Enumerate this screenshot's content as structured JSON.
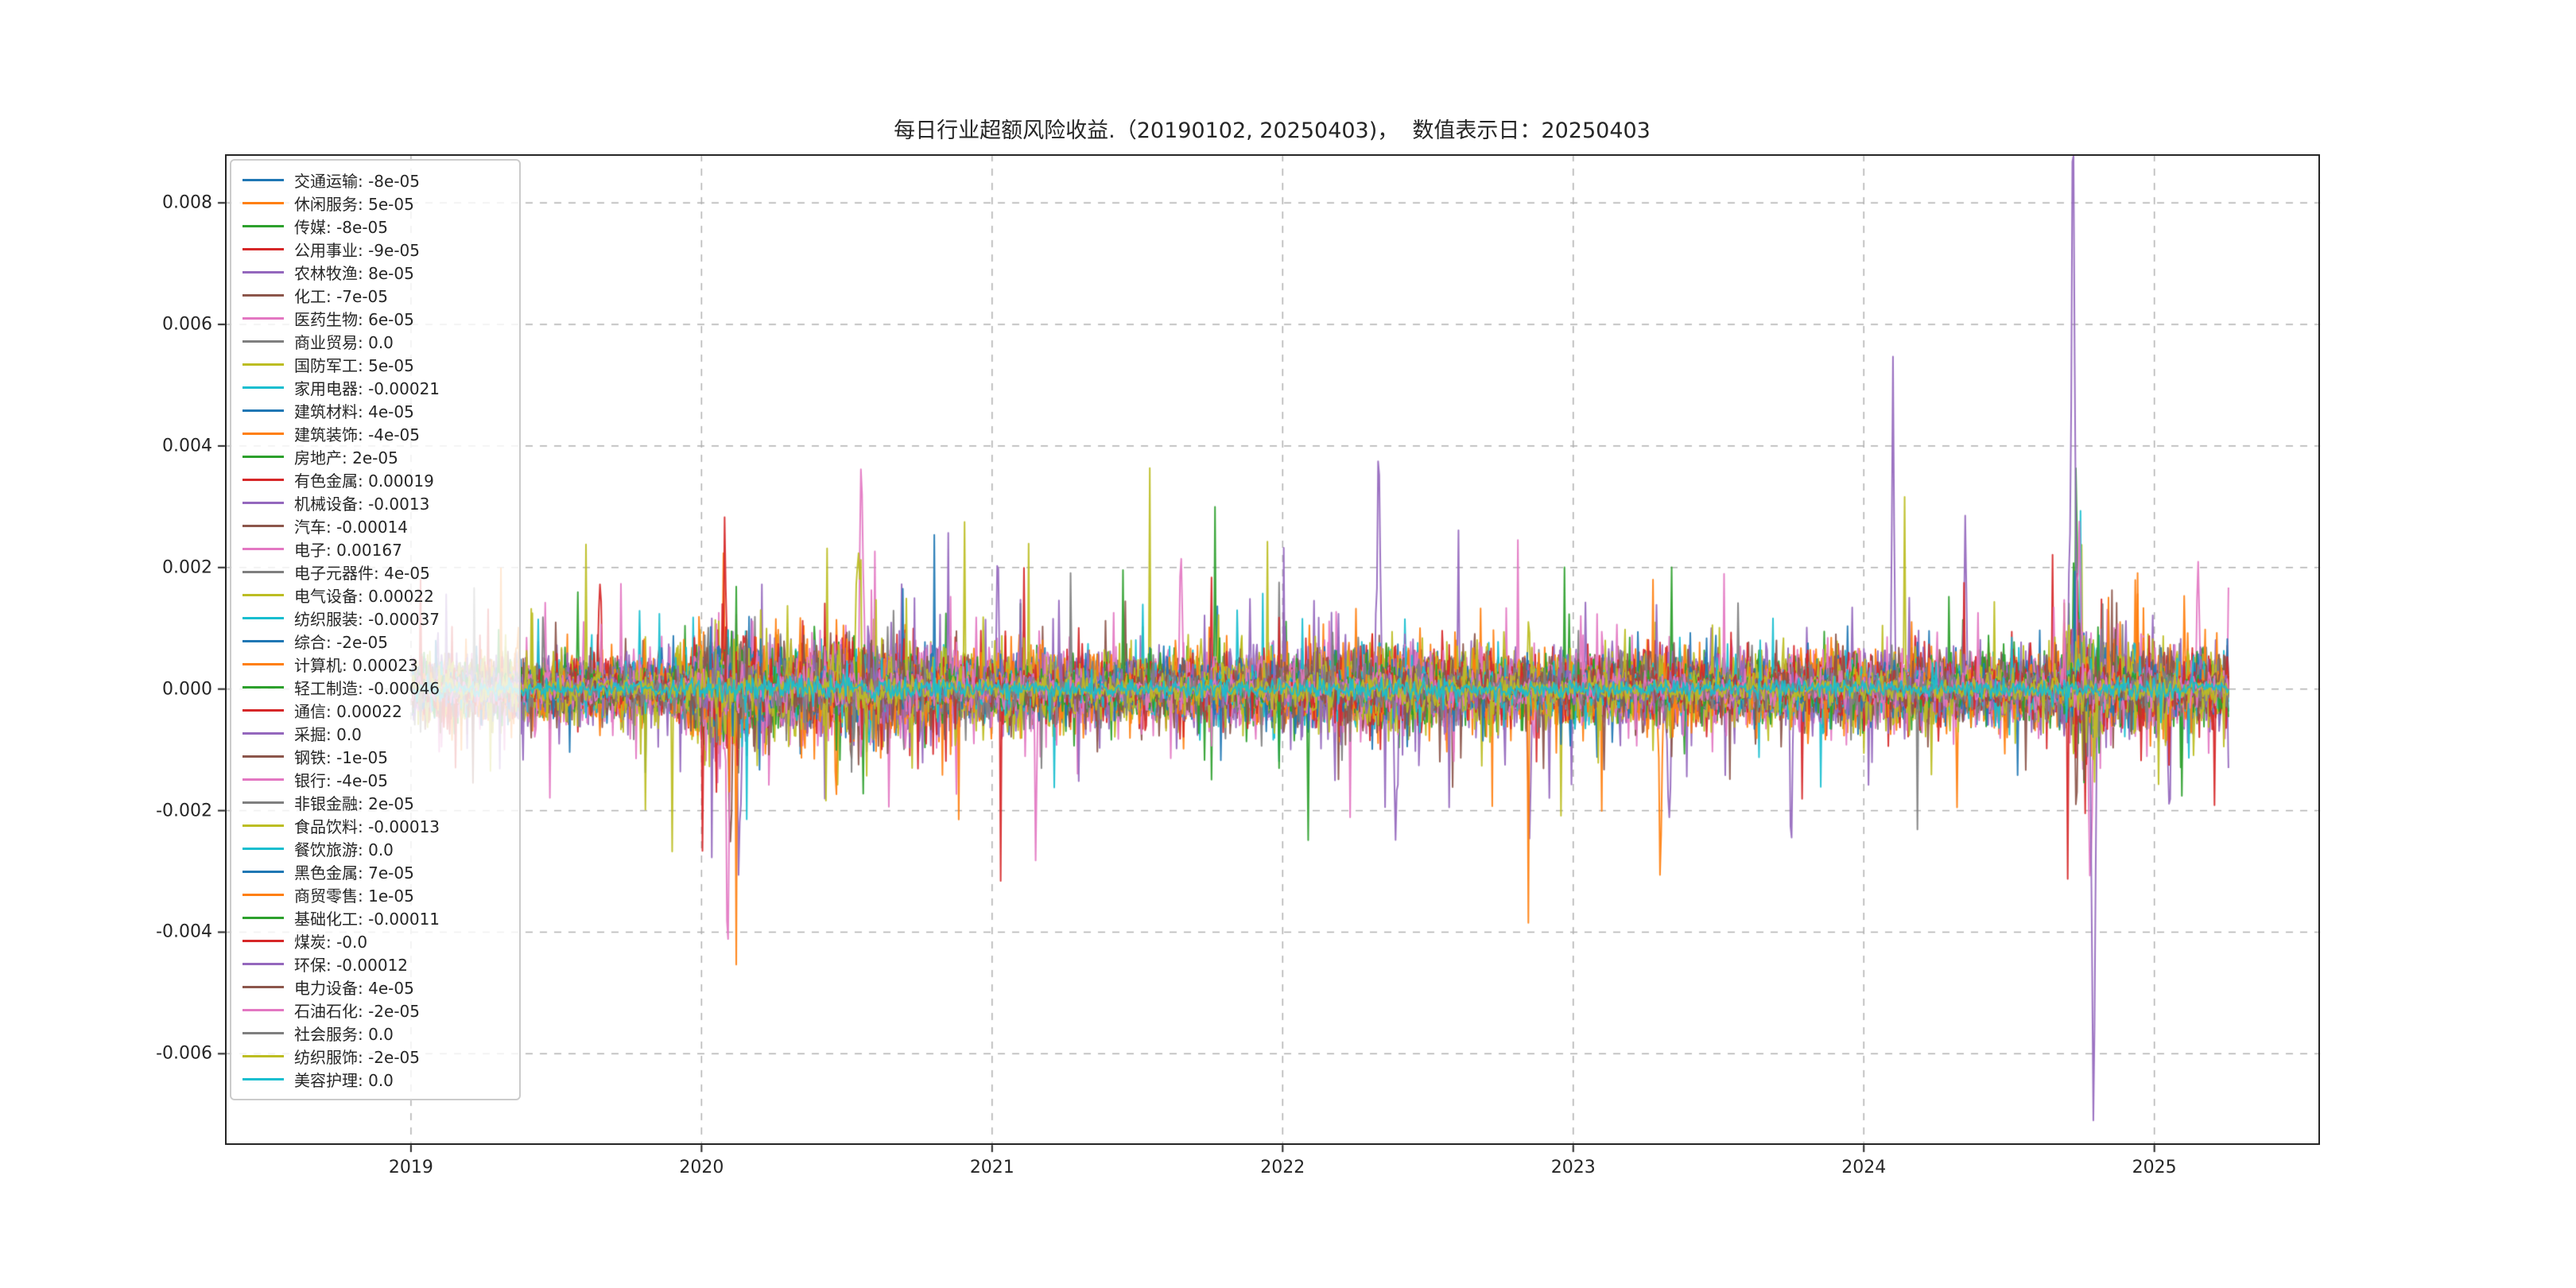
{
  "chart_data": {
    "type": "line",
    "title": "每日行业超额风险收益.（20190102, 20250403)，  数值表示日：20250403",
    "xlabel": "",
    "ylabel": "",
    "legend_position": "upper-left",
    "grid": {
      "show": true,
      "style": "dashed",
      "color": "#b0b0b0"
    },
    "x_range": [
      2018.36,
      2025.57
    ],
    "y_range": [
      -0.0075,
      0.0088
    ],
    "data_x_start": 2019.005,
    "data_x_end": 2025.255,
    "x_ticks": [
      "2019",
      "2020",
      "2021",
      "2022",
      "2023",
      "2024",
      "2025"
    ],
    "x_tick_values": [
      2019,
      2020,
      2021,
      2022,
      2023,
      2024,
      2025
    ],
    "y_ticks": [
      "0.008",
      "0.006",
      "0.004",
      "0.002",
      "0.000",
      "-0.002",
      "-0.004",
      "-0.006"
    ],
    "y_tick_values": [
      0.008,
      0.006,
      0.004,
      0.002,
      0.0,
      -0.002,
      -0.004,
      -0.006
    ],
    "value_date": "20250403",
    "series": [
      {
        "name": "交通运输",
        "value_label": "-8e-05",
        "value": -8e-05,
        "color": "#1f77b4",
        "est_amplitude": 0.00035
      },
      {
        "name": "休闲服务",
        "value_label": "5e-05",
        "value": 5e-05,
        "color": "#ff7f0e",
        "est_amplitude": 0.00055
      },
      {
        "name": "传媒",
        "value_label": "-8e-05",
        "value": -8e-05,
        "color": "#2ca02c",
        "est_amplitude": 0.0005
      },
      {
        "name": "公用事业",
        "value_label": "-9e-05",
        "value": -9e-05,
        "color": "#d62728",
        "est_amplitude": 0.0004
      },
      {
        "name": "农林牧渔",
        "value_label": "8e-05",
        "value": 8e-05,
        "color": "#9467bd",
        "est_amplitude": 0.0006
      },
      {
        "name": "化工",
        "value_label": "-7e-05",
        "value": -7e-05,
        "color": "#8c564b",
        "est_amplitude": 0.0005
      },
      {
        "name": "医药生物",
        "value_label": "6e-05",
        "value": 6e-05,
        "color": "#e377c2",
        "est_amplitude": 0.00065
      },
      {
        "name": "商业贸易",
        "value_label": "0.0",
        "value": 0.0,
        "color": "#7f7f7f",
        "est_amplitude": 0.0004
      },
      {
        "name": "国防军工",
        "value_label": "5e-05",
        "value": 5e-05,
        "color": "#bcbd22",
        "est_amplitude": 0.00065
      },
      {
        "name": "家用电器",
        "value_label": "-0.00021",
        "value": -0.00021,
        "color": "#17becf",
        "est_amplitude": 0.00045
      },
      {
        "name": "建筑材料",
        "value_label": "4e-05",
        "value": 4e-05,
        "color": "#1f77b4",
        "est_amplitude": 0.00045
      },
      {
        "name": "建筑装饰",
        "value_label": "-4e-05",
        "value": -4e-05,
        "color": "#ff7f0e",
        "est_amplitude": 0.0004
      },
      {
        "name": "房地产",
        "value_label": "2e-05",
        "value": 2e-05,
        "color": "#2ca02c",
        "est_amplitude": 0.0005
      },
      {
        "name": "有色金属",
        "value_label": "0.00019",
        "value": 0.00019,
        "color": "#d62728",
        "est_amplitude": 0.0006
      },
      {
        "name": "机械设备",
        "value_label": "-0.0013",
        "value": -0.0013,
        "color": "#9467bd",
        "est_amplitude": 0.00065
      },
      {
        "name": "汽车",
        "value_label": "-0.00014",
        "value": -0.00014,
        "color": "#8c564b",
        "est_amplitude": 0.00045
      },
      {
        "name": "电子",
        "value_label": "0.00167",
        "value": 0.00167,
        "color": "#e377c2",
        "est_amplitude": 0.0006
      },
      {
        "name": "电子元器件",
        "value_label": "4e-05",
        "value": 4e-05,
        "color": "#7f7f7f",
        "est_amplitude": 0.00035
      },
      {
        "name": "电气设备",
        "value_label": "0.00022",
        "value": 0.00022,
        "color": "#bcbd22",
        "est_amplitude": 0.00055
      },
      {
        "name": "纺织服装",
        "value_label": "-0.00037",
        "value": -0.00037,
        "color": "#17becf",
        "est_amplitude": 0.0004
      },
      {
        "name": "综合",
        "value_label": "-2e-05",
        "value": -2e-05,
        "color": "#1f77b4",
        "est_amplitude": 0.00045
      },
      {
        "name": "计算机",
        "value_label": "0.00023",
        "value": 0.00023,
        "color": "#ff7f0e",
        "est_amplitude": 0.0006
      },
      {
        "name": "轻工制造",
        "value_label": "-0.00046",
        "value": -0.00046,
        "color": "#2ca02c",
        "est_amplitude": 0.0004
      },
      {
        "name": "通信",
        "value_label": "0.00022",
        "value": 0.00022,
        "color": "#d62728",
        "est_amplitude": 0.0005
      },
      {
        "name": "采掘",
        "value_label": "0.0",
        "value": 0.0,
        "color": "#9467bd",
        "est_amplitude": 0.00045
      },
      {
        "name": "钢铁",
        "value_label": "-1e-05",
        "value": -1e-05,
        "color": "#8c564b",
        "est_amplitude": 0.00045
      },
      {
        "name": "银行",
        "value_label": "-4e-05",
        "value": -4e-05,
        "color": "#e377c2",
        "est_amplitude": 0.00035
      },
      {
        "name": "非银金融",
        "value_label": "2e-05",
        "value": 2e-05,
        "color": "#7f7f7f",
        "est_amplitude": 0.00045
      },
      {
        "name": "食品饮料",
        "value_label": "-0.00013",
        "value": -0.00013,
        "color": "#bcbd22",
        "est_amplitude": 0.0005
      },
      {
        "name": "餐饮旅游",
        "value_label": "0.0",
        "value": 0.0,
        "color": "#17becf",
        "est_amplitude": 0.0003
      },
      {
        "name": "黑色金属",
        "value_label": "7e-05",
        "value": 7e-05,
        "color": "#1f77b4",
        "est_amplitude": 0.00028
      },
      {
        "name": "商贸零售",
        "value_label": "1e-05",
        "value": 1e-05,
        "color": "#ff7f0e",
        "est_amplitude": 0.00028
      },
      {
        "name": "基础化工",
        "value_label": "-0.00011",
        "value": -0.00011,
        "color": "#2ca02c",
        "est_amplitude": 0.00026
      },
      {
        "name": "煤炭",
        "value_label": "-0.0",
        "value": 0.0,
        "color": "#d62728",
        "est_amplitude": 0.0003
      },
      {
        "name": "环保",
        "value_label": "-0.00012",
        "value": -0.00012,
        "color": "#9467bd",
        "est_amplitude": 0.00026
      },
      {
        "name": "电力设备",
        "value_label": "4e-05",
        "value": 4e-05,
        "color": "#8c564b",
        "est_amplitude": 0.0003
      },
      {
        "name": "石油石化",
        "value_label": "-2e-05",
        "value": -2e-05,
        "color": "#e377c2",
        "est_amplitude": 0.00026
      },
      {
        "name": "社会服务",
        "value_label": "0.0",
        "value": 0.0,
        "color": "#7f7f7f",
        "est_amplitude": 0.00022
      },
      {
        "name": "纺织服饰",
        "value_label": "-2e-05",
        "value": -2e-05,
        "color": "#bcbd22",
        "est_amplitude": 0.00022
      },
      {
        "name": "美容护理",
        "value_label": "0.0",
        "value": 0.0,
        "color": "#17becf",
        "est_amplitude": 0.00014
      }
    ],
    "events": [
      {
        "series": 3,
        "x": 2020.08,
        "peak": 0.0028,
        "width": 0.006
      },
      {
        "series": 6,
        "x": 2020.09,
        "peak": -0.004,
        "width": 0.007
      },
      {
        "series": 6,
        "x": 2020.55,
        "peak": 0.0041,
        "width": 0.007
      },
      {
        "series": 4,
        "x": 2020.13,
        "peak": -0.0024,
        "width": 0.008
      },
      {
        "series": 5,
        "x": 2020.1,
        "peak": -0.0026,
        "width": 0.007
      },
      {
        "series": 8,
        "x": 2020.54,
        "peak": 0.0029,
        "width": 0.008
      },
      {
        "series": 13,
        "x": 2019.65,
        "peak": 0.0019,
        "width": 0.007
      },
      {
        "series": 14,
        "x": 2021.02,
        "peak": 0.0021,
        "width": 0.006
      },
      {
        "series": 6,
        "x": 2021.15,
        "peak": -0.0021,
        "width": 0.006
      },
      {
        "series": 16,
        "x": 2021.65,
        "peak": 0.0022,
        "width": 0.006
      },
      {
        "series": 14,
        "x": 2022.33,
        "peak": 0.0035,
        "width": 0.006
      },
      {
        "series": 14,
        "x": 2022.39,
        "peak": -0.0026,
        "width": 0.007
      },
      {
        "series": 4,
        "x": 2022.85,
        "peak": -0.0024,
        "width": 0.007
      },
      {
        "series": 1,
        "x": 2023.3,
        "peak": -0.0027,
        "width": 0.007
      },
      {
        "series": 4,
        "x": 2023.33,
        "peak": -0.0025,
        "width": 0.007
      },
      {
        "series": 14,
        "x": 2023.75,
        "peak": -0.0024,
        "width": 0.006
      },
      {
        "series": 14,
        "x": 2024.1,
        "peak": 0.0034,
        "width": 0.006
      },
      {
        "series": 4,
        "x": 2024.35,
        "peak": 0.0027,
        "width": 0.006
      },
      {
        "series": 14,
        "x": 2024.72,
        "peak": 0.008,
        "width": 0.009
      },
      {
        "series": 14,
        "x": 2024.79,
        "peak": -0.0068,
        "width": 0.008
      },
      {
        "series": 12,
        "x": 2024.73,
        "peak": 0.003,
        "width": 0.01
      },
      {
        "series": 16,
        "x": 2024.74,
        "peak": 0.0024,
        "width": 0.009
      },
      {
        "series": 6,
        "x": 2024.78,
        "peak": -0.003,
        "width": 0.009
      },
      {
        "series": 14,
        "x": 2025.05,
        "peak": -0.0023,
        "width": 0.006
      },
      {
        "series": 6,
        "x": 2025.15,
        "peak": 0.0024,
        "width": 0.006
      }
    ],
    "volatility_profile": [
      [
        2019.0,
        0.9
      ],
      [
        2019.5,
        1.0
      ],
      [
        2019.9,
        0.9
      ],
      [
        2020.05,
        1.9
      ],
      [
        2020.25,
        1.4
      ],
      [
        2020.6,
        1.5
      ],
      [
        2020.9,
        1.1
      ],
      [
        2021.5,
        1.0
      ],
      [
        2022.0,
        1.1
      ],
      [
        2022.35,
        1.4
      ],
      [
        2022.8,
        1.0
      ],
      [
        2023.0,
        1.1
      ],
      [
        2023.5,
        1.0
      ],
      [
        2024.0,
        1.1
      ],
      [
        2024.65,
        1.0
      ],
      [
        2024.75,
        1.9
      ],
      [
        2024.85,
        1.3
      ],
      [
        2025.1,
        1.2
      ],
      [
        2025.26,
        1.1
      ]
    ]
  }
}
